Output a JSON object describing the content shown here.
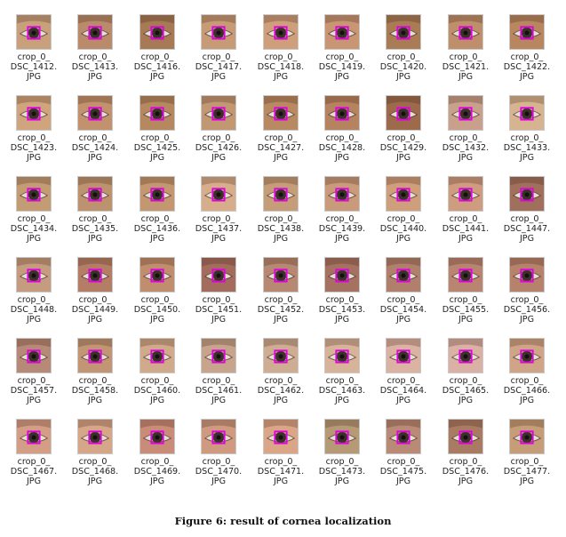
{
  "figure": {
    "caption": "Figure 6: result of cornea localization",
    "label_prefix": "crop_0_",
    "label_suffix": "JPG",
    "box_color": "#e000e0",
    "images": [
      {
        "name": "DSC_1412.",
        "skin": "#c9a07c"
      },
      {
        "name": "DSC_1413.",
        "skin": "#b98b6b"
      },
      {
        "name": "DSC_1416.",
        "skin": "#a67a55"
      },
      {
        "name": "DSC_1417.",
        "skin": "#c79b76"
      },
      {
        "name": "DSC_1418.",
        "skin": "#cf9f7c"
      },
      {
        "name": "DSC_1419.",
        "skin": "#c99674"
      },
      {
        "name": "DSC_1420.",
        "skin": "#a97c55"
      },
      {
        "name": "DSC_1421.",
        "skin": "#bf8f6b"
      },
      {
        "name": "DSC_1422.",
        "skin": "#b9875f"
      },
      {
        "name": "DSC_1423.",
        "skin": "#d0a47d"
      },
      {
        "name": "DSC_1424.",
        "skin": "#c1926d"
      },
      {
        "name": "DSC_1425.",
        "skin": "#b6885f"
      },
      {
        "name": "DSC_1426.",
        "skin": "#c29873"
      },
      {
        "name": "DSC_1427.",
        "skin": "#b98a62"
      },
      {
        "name": "DSC_1428.",
        "skin": "#b5835f"
      },
      {
        "name": "DSC_1429.",
        "skin": "#9d6b4c"
      },
      {
        "name": "DSC_1432.",
        "skin": "#c8a08c"
      },
      {
        "name": "DSC_1433.",
        "skin": "#d6b491"
      },
      {
        "name": "DSC_1434.",
        "skin": "#c49c74"
      },
      {
        "name": "DSC_1435.",
        "skin": "#bd936f"
      },
      {
        "name": "DSC_1436.",
        "skin": "#c3976f"
      },
      {
        "name": "DSC_1437.",
        "skin": "#d8ad8c"
      },
      {
        "name": "DSC_1438.",
        "skin": "#c59e79"
      },
      {
        "name": "DSC_1439.",
        "skin": "#c99b7a"
      },
      {
        "name": "DSC_1440.",
        "skin": "#cf9e7a"
      },
      {
        "name": "DSC_1441.",
        "skin": "#d09c80"
      },
      {
        "name": "DSC_1447.",
        "skin": "#a0705c"
      },
      {
        "name": "DSC_1448.",
        "skin": "#c69c80"
      },
      {
        "name": "DSC_1449.",
        "skin": "#b47e66"
      },
      {
        "name": "DSC_1450.",
        "skin": "#c08e6e"
      },
      {
        "name": "DSC_1451.",
        "skin": "#a36c5c"
      },
      {
        "name": "DSC_1452.",
        "skin": "#b78872"
      },
      {
        "name": "DSC_1453.",
        "skin": "#a57262"
      },
      {
        "name": "DSC_1454.",
        "skin": "#b0806c"
      },
      {
        "name": "DSC_1455.",
        "skin": "#b98470"
      },
      {
        "name": "DSC_1456.",
        "skin": "#b6826c"
      },
      {
        "name": "DSC_1457.",
        "skin": "#b68a76"
      },
      {
        "name": "DSC_1458.",
        "skin": "#c29674"
      },
      {
        "name": "DSC_1460.",
        "skin": "#d0aa8a"
      },
      {
        "name": "DSC_1461.",
        "skin": "#c7a48b"
      },
      {
        "name": "DSC_1462.",
        "skin": "#cfad93"
      },
      {
        "name": "DSC_1463.",
        "skin": "#d7b39a"
      },
      {
        "name": "DSC_1464.",
        "skin": "#dcb2a3"
      },
      {
        "name": "DSC_1465.",
        "skin": "#dbb1a6"
      },
      {
        "name": "DSC_1466.",
        "skin": "#cfa487"
      },
      {
        "name": "DSC_1467.",
        "skin": "#d49e86"
      },
      {
        "name": "DSC_1468.",
        "skin": "#d6a688"
      },
      {
        "name": "DSC_1469.",
        "skin": "#c98c78"
      },
      {
        "name": "DSC_1470.",
        "skin": "#cf9a80"
      },
      {
        "name": "DSC_1471.",
        "skin": "#dba588"
      },
      {
        "name": "DSC_1473.",
        "skin": "#b69a76"
      },
      {
        "name": "DSC_1475.",
        "skin": "#b98a76"
      },
      {
        "name": "DSC_1476.",
        "skin": "#aa7b63"
      },
      {
        "name": "DSC_1477.",
        "skin": "#c59d78"
      }
    ]
  }
}
